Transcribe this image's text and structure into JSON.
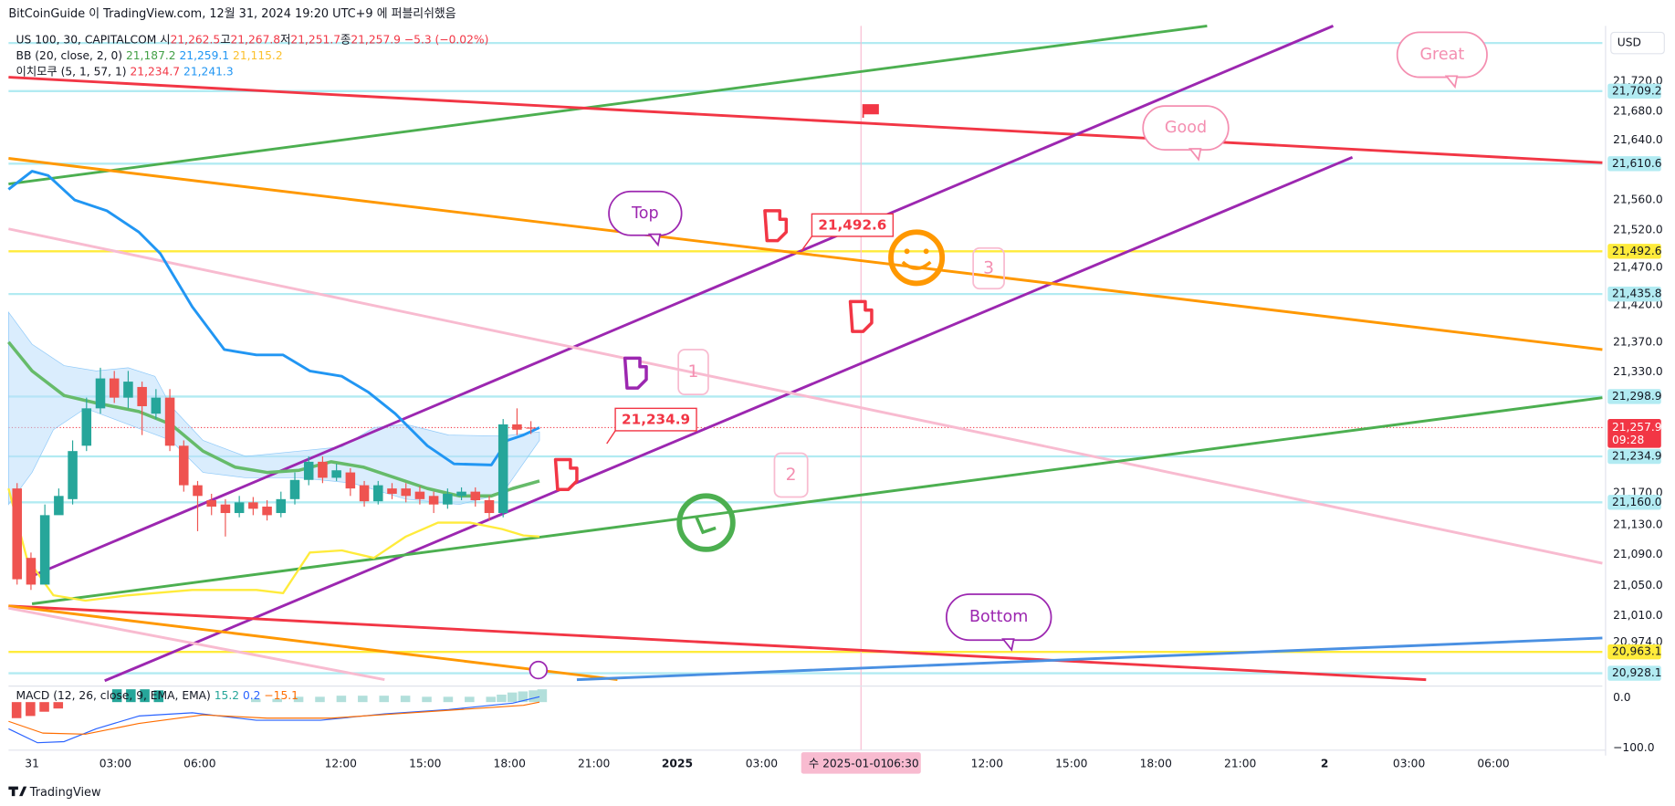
{
  "header": {
    "publisher": "BitCoinGuide 이 TradingView.com, 12월 31, 2024 19:20 UTC+9 에 퍼블리쉬했음"
  },
  "legend": {
    "symbol": "US 100, 30, CAPITALCOM",
    "ohlc": [
      {
        "label": "시",
        "value": "21,262.5"
      },
      {
        "label": "고",
        "value": "21,267.8"
      },
      {
        "label": "저",
        "value": "21,251.7"
      },
      {
        "label": "종",
        "value": "21,257.9"
      }
    ],
    "change": "−5.3 (−0.02%)",
    "bb": {
      "name": "BB (20, close, 2, 0)",
      "values": [
        "21,187.2",
        "21,259.1",
        "21,115.2"
      ]
    },
    "ichimoku": {
      "name": "이치모쿠 (5, 1, 57, 1)",
      "values": [
        "21,234.7",
        "21,241.3"
      ]
    }
  },
  "macd": {
    "name": "MACD (12, 26, close, 9, EMA, EMA)",
    "values": [
      "15.2",
      "0.2",
      "−15.1"
    ]
  },
  "currency": "USD",
  "price_axis": [
    "21,720.0",
    "21,680.0",
    "21,640.0",
    "21,560.0",
    "21,520.0",
    "21,470.0",
    "21,420.0",
    "21,370.0",
    "21,330.0",
    "21,170.0",
    "21,130.0",
    "21,090.0",
    "21,050.0",
    "21,010.0",
    "20,974.0"
  ],
  "macd_axis": [
    "0.0",
    "−100.0"
  ],
  "price_badges": [
    "21,709.2",
    "21,610.6",
    "21,492.6",
    "21,435.8",
    "21,298.9",
    "21,234.9",
    "21,160.0",
    "20,963.1",
    "20,928.1"
  ],
  "last_price": {
    "price": "21,257.9",
    "countdown": "09:28"
  },
  "time_axis": [
    "31",
    "03:00",
    "06:00",
    "12:00",
    "15:00",
    "18:00",
    "21:00",
    "2025",
    "03:00",
    "12:00",
    "15:00",
    "18:00",
    "21:00",
    "2",
    "03:00",
    "06:00"
  ],
  "crosshair": {
    "day": "수 2025-01-01",
    "time": "06:30"
  },
  "annotations": {
    "great": "Great",
    "good": "Good",
    "top": "Top",
    "bottom": "Bottom",
    "price_high": "21,492.6",
    "price_low": "21,234.9",
    "one": "1",
    "two": "2",
    "three": "3"
  },
  "footer": "TradingView"
}
